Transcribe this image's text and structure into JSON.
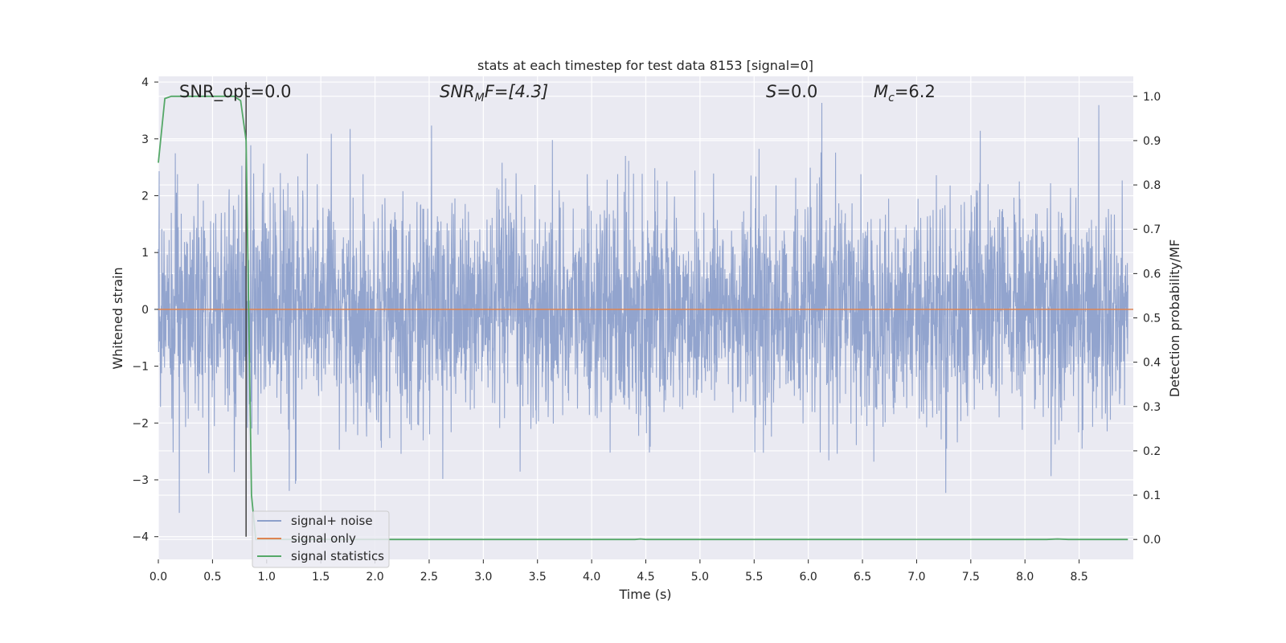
{
  "chart_data": {
    "type": "line",
    "title": "stats at each timestep for test data 8153 [signal=0]",
    "xlabel": "Time (s)",
    "ylabel": "Whitened strain",
    "y2label": "Detection probability/MF",
    "xlim": [
      0.0,
      9.0
    ],
    "ylim": [
      -4.4,
      4.1
    ],
    "y2lim": [
      -0.045,
      1.045
    ],
    "x_ticks": [
      "0.0",
      "0.5",
      "1.0",
      "1.5",
      "2.0",
      "2.5",
      "3.0",
      "3.5",
      "4.0",
      "4.5",
      "5.0",
      "5.5",
      "6.0",
      "6.5",
      "7.0",
      "7.5",
      "8.0",
      "8.5"
    ],
    "x_tick_values": [
      0.0,
      0.5,
      1.0,
      1.5,
      2.0,
      2.5,
      3.0,
      3.5,
      4.0,
      4.5,
      5.0,
      5.5,
      6.0,
      6.5,
      7.0,
      7.5,
      8.0,
      8.5
    ],
    "y_ticks": [
      "4",
      "3",
      "2",
      "1",
      "0",
      "−1",
      "−2",
      "−3",
      "−4"
    ],
    "y_tick_values": [
      4,
      3,
      2,
      1,
      0,
      -1,
      -2,
      -3,
      -4
    ],
    "y2_ticks": [
      "1.0",
      "0.9",
      "0.8",
      "0.7",
      "0.6",
      "0.5",
      "0.4",
      "0.3",
      "0.2",
      "0.1",
      "0.0"
    ],
    "y2_tick_values": [
      1.0,
      0.9,
      0.8,
      0.7,
      0.6,
      0.5,
      0.4,
      0.3,
      0.2,
      0.1,
      0.0
    ],
    "grid": true,
    "legend_position": "lower-left",
    "colors": {
      "noise": "#8da0cb",
      "signal": "#dd8452",
      "stats": "#55a868",
      "vline": "#404040",
      "background": "#eaeaf2",
      "grid": "#ffffff"
    },
    "annotations": {
      "snr_opt": "SNR_opt=0.0",
      "snr_mf_main": "SNR",
      "snr_mf_sub": "M",
      "snr_mf_rest": "F=[4.3]",
      "s_stat_var": "S",
      "s_stat_rest": "=0.0",
      "mc_var": "M",
      "mc_sub": "c",
      "mc_rest": "=6.2"
    },
    "vertical_line_x": 0.81,
    "series": [
      {
        "name": "signal+ noise",
        "axis": "left",
        "description_values": "whitened noise, approx. N(0,1) over 0-9 s",
        "noise_envelope": [
          -3.9,
          3.8
        ]
      },
      {
        "name": "signal only",
        "axis": "left",
        "x": [
          0.0,
          9.0
        ],
        "y": [
          0.0,
          0.0
        ]
      },
      {
        "name": "signal statistics",
        "axis": "right",
        "x": [
          0.0,
          0.06,
          0.12,
          0.2,
          0.3,
          0.4,
          0.5,
          0.6,
          0.7,
          0.76,
          0.81,
          0.86,
          0.9,
          1.5,
          2.5,
          3.5,
          4.4,
          4.45,
          4.5,
          5.5,
          6.5,
          7.5,
          8.2,
          8.3,
          8.4,
          8.95
        ],
        "y": [
          0.85,
          0.995,
          1.0,
          1.0,
          1.0,
          1.0,
          1.0,
          1.0,
          1.0,
          0.99,
          0.9,
          0.1,
          0.0,
          0.0,
          0.0,
          0.0,
          0.0,
          0.001,
          0.0,
          0.0,
          0.0,
          0.0,
          0.0,
          0.001,
          0.0,
          0.0
        ]
      }
    ]
  }
}
